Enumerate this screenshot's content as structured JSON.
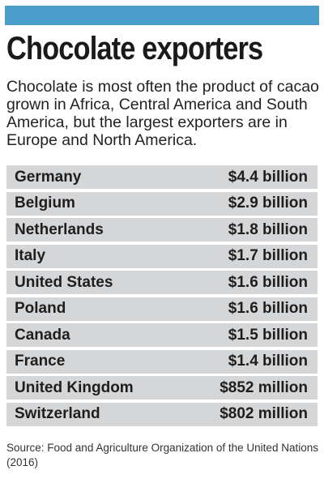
{
  "header": {
    "title": "Chocolate exporters",
    "subtitle": "Chocolate is most often the product of cacao grown in Africa, Central America and South America, but the largest exporters are in Europe and North America."
  },
  "colors": {
    "accent_bar": "#4a9ccb",
    "row_background": "#d5d6d8"
  },
  "chart_data": {
    "type": "table",
    "title": "Chocolate exporters",
    "subtitle": "Chocolate is most often the product of cacao grown in Africa, Central America and South America, but the largest exporters are in Europe and North America.",
    "rows": [
      {
        "country": "Germany",
        "value": "$4.4 billion"
      },
      {
        "country": "Belgium",
        "value": "$2.9 billion"
      },
      {
        "country": "Netherlands",
        "value": "$1.8 billion"
      },
      {
        "country": "Italy",
        "value": "$1.7 billion"
      },
      {
        "country": "United States",
        "value": "$1.6 billion"
      },
      {
        "country": "Poland",
        "value": "$1.6 billion"
      },
      {
        "country": "Canada",
        "value": "$1.5 billion"
      },
      {
        "country": "France",
        "value": "$1.4 billion"
      },
      {
        "country": "United Kingdom",
        "value": "$852 million"
      },
      {
        "country": "Switzerland",
        "value": "$802 million"
      }
    ],
    "source": "Source: Food and Agriculture Organization of the United Nations (2016)"
  }
}
